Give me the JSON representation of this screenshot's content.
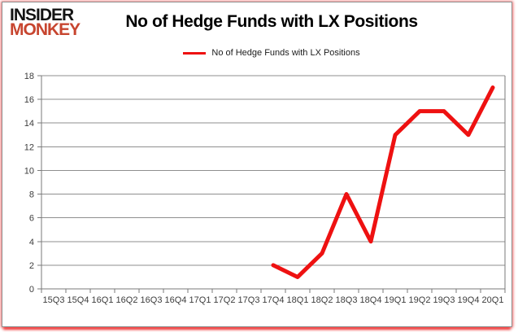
{
  "logo": {
    "line1": "INSIDER",
    "line2": "MONKEY"
  },
  "header": {
    "title": "No of Hedge Funds with LX Positions"
  },
  "legend": {
    "label": "No of Hedge Funds with LX Positions"
  },
  "colors": {
    "line": "#ee1111",
    "grid": "#8f8f8f",
    "axis": "#7a7a7a",
    "tick": "#7a7a7a",
    "label": "#3d3d3d",
    "logo_black": "#141414",
    "logo_red": "#c7452f",
    "card_border": "#8f8f8f",
    "edge_glow_red": "#eb1414"
  },
  "chart_data": {
    "type": "line",
    "title": "No of Hedge Funds with LX Positions",
    "xlabel": "",
    "ylabel": "",
    "categories": [
      "15Q3",
      "15Q4",
      "16Q1",
      "16Q2",
      "16Q3",
      "16Q4",
      "17Q1",
      "17Q2",
      "17Q3",
      "17Q4",
      "18Q1",
      "18Q2",
      "18Q3",
      "18Q4",
      "19Q1",
      "19Q2",
      "19Q3",
      "19Q4",
      "20Q1"
    ],
    "series": [
      {
        "name": "No of Hedge Funds with LX Positions",
        "values": [
          null,
          null,
          null,
          null,
          null,
          null,
          null,
          null,
          null,
          2,
          1,
          3,
          8,
          4,
          13,
          15,
          15,
          13,
          17
        ]
      }
    ],
    "ylim": [
      0,
      18
    ],
    "ytick_step": 2,
    "grid": true,
    "legend_position": "top"
  }
}
